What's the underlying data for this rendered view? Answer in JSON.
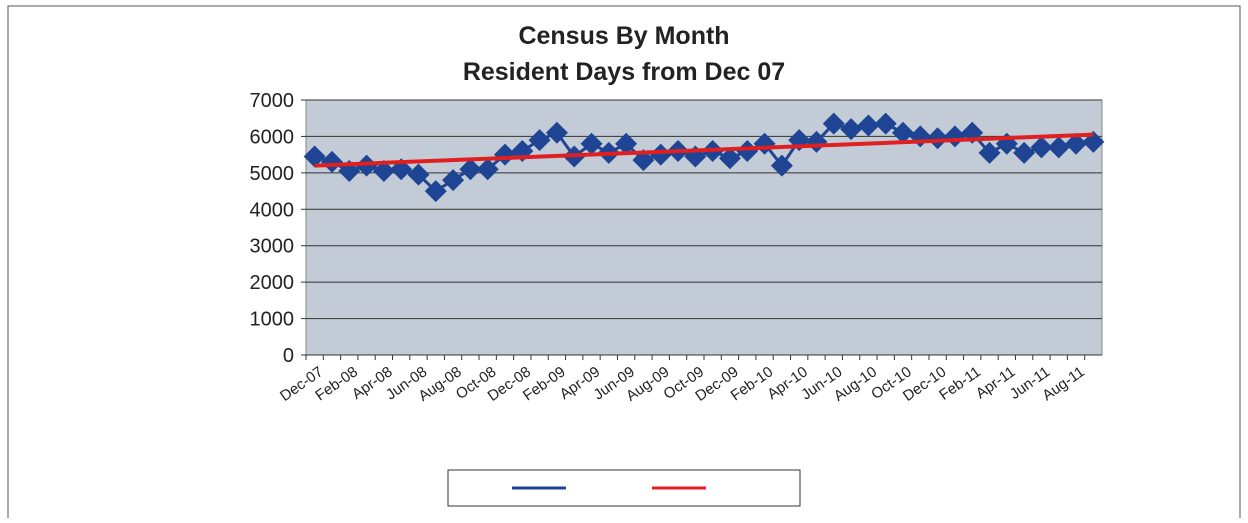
{
  "chart_data": {
    "type": "line",
    "title": "Census By Month",
    "subtitle": "Resident Days from Dec 07",
    "categories": [
      "Dec-07",
      null,
      "Feb-08",
      null,
      "Apr-08",
      null,
      "Jun-08",
      null,
      "Aug-08",
      null,
      "Oct-08",
      null,
      "Dec-08",
      null,
      "Feb-09",
      null,
      "Apr-09",
      null,
      "Jun-09",
      null,
      "Aug-09",
      null,
      "Oct-09",
      null,
      "Dec-09",
      null,
      "Feb-10",
      null,
      "Apr-10",
      null,
      "Jun-10",
      null,
      "Aug-10",
      null,
      "Oct-10",
      null,
      "Dec-10",
      null,
      "Feb-11",
      null,
      "Apr-11",
      null,
      "Jun-11",
      null,
      "Aug-11",
      null
    ],
    "series": [
      {
        "color": "#1f4494",
        "values": [
          5450,
          5300,
          5050,
          5200,
          5050,
          5100,
          4950,
          4500,
          4800,
          5100,
          5100,
          5500,
          5600,
          5900,
          6100,
          5450,
          5800,
          5550,
          5800,
          5350,
          5500,
          5600,
          5450,
          5600,
          5400,
          5600,
          5800,
          5200,
          5900,
          5850,
          6350,
          6200,
          6300,
          6350,
          6100,
          6000,
          5950,
          6000,
          6100,
          5550,
          5800,
          5550,
          5700,
          5700,
          5800,
          5850
        ]
      }
    ],
    "trendline": {
      "color": "#e02020",
      "start": 5200,
      "end": 6050
    },
    "ylim": [
      0,
      7000
    ],
    "yticks": [
      0,
      1000,
      2000,
      3000,
      4000,
      5000,
      6000,
      7000
    ],
    "grid": true
  }
}
